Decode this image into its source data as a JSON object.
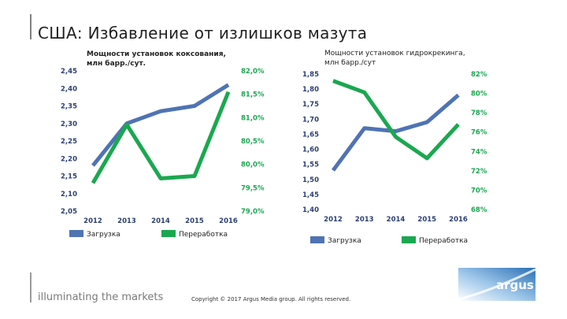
{
  "slide": {
    "title": "США: Избавление от излишков мазута",
    "tagline": "illuminating the markets",
    "copyright": "Copyright © 2017 Argus Media group. All rights reserved.",
    "logo_text": "argus"
  },
  "colors": {
    "blue": "#4f73b3",
    "green": "#1aa84f",
    "tick_blue": "#2b3f73",
    "tick_green": "#1aa84f"
  },
  "chart_data": [
    {
      "type": "line",
      "title": "Мощности установок коксования,\nмлн барр./сут.",
      "categories": [
        "2012",
        "2013",
        "2014",
        "2015",
        "2016"
      ],
      "left_axis": {
        "ticks": [
          "2,45",
          "2,40",
          "2,35",
          "2,30",
          "2,25",
          "2,20",
          "2,15",
          "2,10",
          "2,05"
        ],
        "ylim": [
          2.05,
          2.45
        ]
      },
      "right_axis": {
        "ticks": [
          "82,0%",
          "81,5%",
          "81,0%",
          "80,5%",
          "80,0%",
          "79,5%",
          "79,0%"
        ],
        "ylim": [
          79.0,
          82.0
        ]
      },
      "series": [
        {
          "name": "Загрузка",
          "axis": "left",
          "color": "#4f73b3",
          "values": [
            2.18,
            2.3,
            2.335,
            2.35,
            2.41
          ]
        },
        {
          "name": "Переработка",
          "axis": "right",
          "color": "#1aa84f",
          "values": [
            79.6,
            80.85,
            79.7,
            79.75,
            81.55
          ]
        }
      ],
      "legend_position": "bottom"
    },
    {
      "type": "line",
      "title": "Мощности установок гидрокрекинга,\nмлн барр./сут",
      "categories": [
        "2012",
        "2013",
        "2014",
        "2015",
        "2016"
      ],
      "left_axis": {
        "ticks": [
          "1,85",
          "1,80",
          "1,75",
          "1,70",
          "1,65",
          "1,60",
          "1,55",
          "1,50",
          "1,45",
          "1,40"
        ],
        "ylim": [
          1.4,
          1.85
        ]
      },
      "right_axis": {
        "ticks": [
          "82%",
          "80%",
          "78%",
          "76%",
          "74%",
          "72%",
          "70%",
          "68%"
        ],
        "ylim": [
          68,
          82
        ]
      },
      "series": [
        {
          "name": "Загрузка",
          "axis": "left",
          "color": "#4f73b3",
          "values": [
            1.53,
            1.67,
            1.66,
            1.69,
            1.78
          ]
        },
        {
          "name": "Переработка",
          "axis": "right",
          "color": "#1aa84f",
          "values": [
            81.3,
            80.1,
            75.5,
            73.3,
            76.8
          ]
        }
      ],
      "legend_position": "bottom"
    }
  ]
}
